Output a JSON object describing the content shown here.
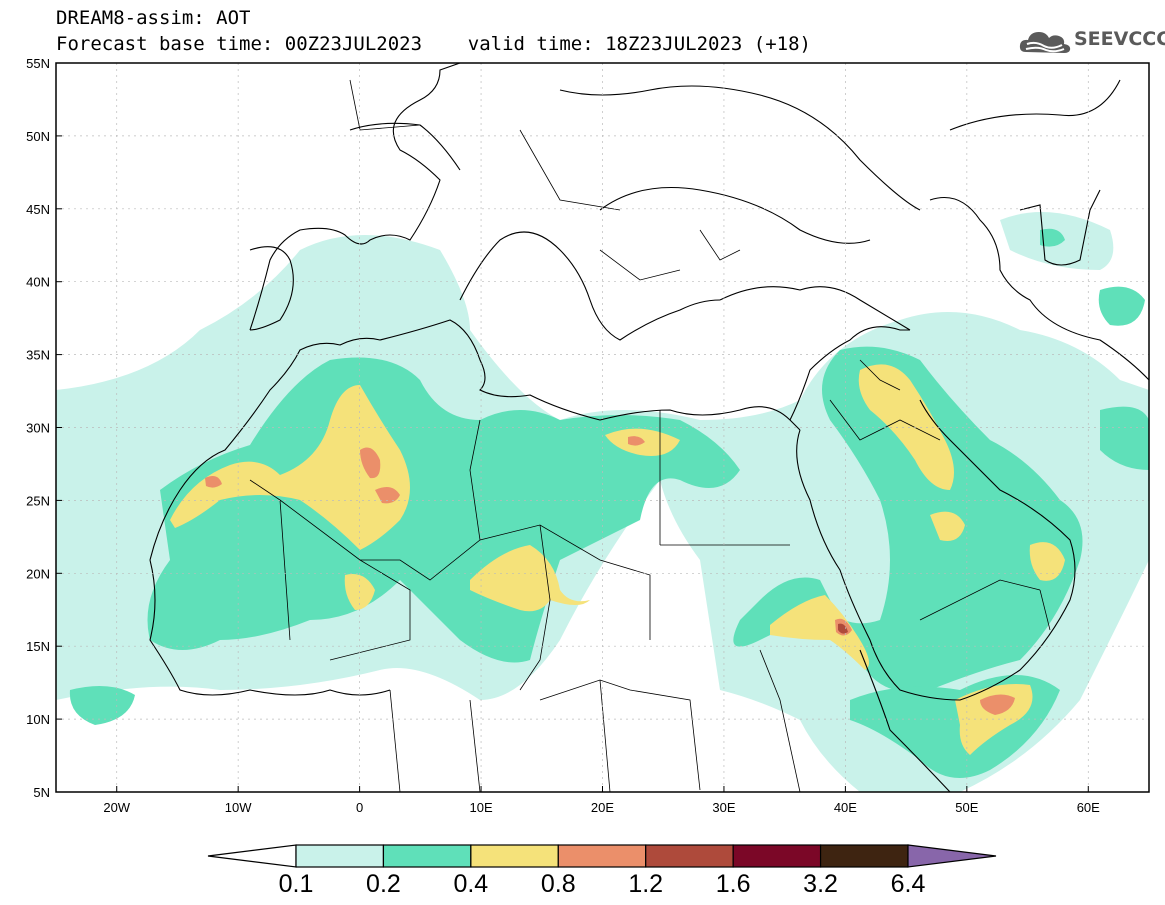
{
  "header": {
    "line1": "DREAM8-assim: AOT",
    "line2": "Forecast base time: 00Z23JUL2023    valid time: 18Z23JUL2023 (+18)",
    "logo_text": "SEEVCCC",
    "logo_icon": "cloud-icon"
  },
  "map": {
    "lon_range": [
      -25,
      65
    ],
    "lat_range": [
      5,
      55
    ],
    "lat_ticks": [
      "55N",
      "50N",
      "45N",
      "40N",
      "35N",
      "30N",
      "25N",
      "20N",
      "15N",
      "10N",
      "5N"
    ],
    "lat_values": [
      55,
      50,
      45,
      40,
      35,
      30,
      25,
      20,
      15,
      10,
      5
    ],
    "lon_ticks": [
      "20W",
      "10W",
      "0",
      "10E",
      "20E",
      "30E",
      "40E",
      "50E",
      "60E"
    ],
    "lon_values": [
      -20,
      -10,
      0,
      10,
      20,
      30,
      40,
      50,
      60
    ]
  },
  "colorbar": {
    "levels": [
      "0.1",
      "0.2",
      "0.4",
      "0.8",
      "1.2",
      "1.6",
      "3.2",
      "6.4"
    ],
    "colors": [
      "#ffffff",
      "#c9f2ea",
      "#5fe0b9",
      "#f5e27a",
      "#eb8f6a",
      "#ae4a3b",
      "#7b0727",
      "#3e2411",
      "#8866aa"
    ]
  }
}
